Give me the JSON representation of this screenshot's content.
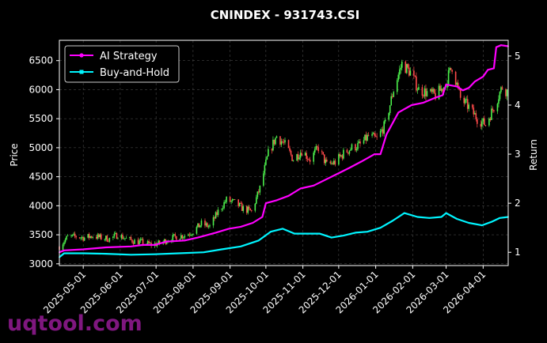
{
  "chart_data": {
    "type": "line",
    "title": "CNINDEX - 931743.CSI",
    "ylabel": "Price",
    "y2label": "Return",
    "ylim": [
      2970,
      6850
    ],
    "y2lim": [
      0.73,
      5.32
    ],
    "xlim": [
      "2025-04-11",
      "2026-04-22"
    ],
    "yticks": [
      "3000",
      "3500",
      "4000",
      "4500",
      "5000",
      "5500",
      "6000",
      "6500"
    ],
    "y2ticks": [
      "1",
      "2",
      "3",
      "4",
      "5"
    ],
    "xticks": [
      "2025-05-01",
      "2025-06-01",
      "2025-07-01",
      "2025-08-01",
      "2025-09-01",
      "2025-10-01",
      "2025-11-01",
      "2025-12-01",
      "2026-01-01",
      "2026-02-01",
      "2026-03-01",
      "2026-04-01"
    ],
    "grid": true,
    "legend_position": "top-left",
    "price_series": {
      "name": "Price (candlestick)",
      "colors": {
        "up": "#4cf04c",
        "down": "#ff4a4a"
      },
      "points": [
        [
          "2025-04-11",
          3300
        ],
        [
          "2025-04-18",
          3460
        ],
        [
          "2025-04-25",
          3470
        ],
        [
          "2025-05-02",
          3450
        ],
        [
          "2025-05-09",
          3480
        ],
        [
          "2025-05-16",
          3450
        ],
        [
          "2025-05-23",
          3430
        ],
        [
          "2025-05-30",
          3500
        ],
        [
          "2025-06-06",
          3430
        ],
        [
          "2025-06-13",
          3390
        ],
        [
          "2025-06-20",
          3370
        ],
        [
          "2025-06-27",
          3330
        ],
        [
          "2025-07-04",
          3350
        ],
        [
          "2025-07-11",
          3420
        ],
        [
          "2025-07-18",
          3470
        ],
        [
          "2025-07-25",
          3490
        ],
        [
          "2025-08-01",
          3560
        ],
        [
          "2025-08-08",
          3690
        ],
        [
          "2025-08-15",
          3640
        ],
        [
          "2025-08-22",
          3900
        ],
        [
          "2025-08-29",
          4100
        ],
        [
          "2025-09-05",
          4050
        ],
        [
          "2025-09-12",
          3950
        ],
        [
          "2025-09-19",
          3900
        ],
        [
          "2025-09-26",
          4300
        ],
        [
          "2025-10-03",
          4900
        ],
        [
          "2025-10-10",
          5200
        ],
        [
          "2025-10-17",
          5050
        ],
        [
          "2025-10-24",
          4800
        ],
        [
          "2025-10-31",
          4950
        ],
        [
          "2025-11-07",
          4800
        ],
        [
          "2025-11-14",
          5000
        ],
        [
          "2025-11-21",
          4700
        ],
        [
          "2025-11-28",
          4750
        ],
        [
          "2025-12-05",
          4900
        ],
        [
          "2025-12-12",
          5000
        ],
        [
          "2025-12-19",
          5050
        ],
        [
          "2025-12-26",
          5200
        ],
        [
          "2026-01-02",
          5150
        ],
        [
          "2026-01-09",
          5400
        ],
        [
          "2026-01-16",
          6000
        ],
        [
          "2026-01-23",
          6450
        ],
        [
          "2026-01-30",
          6300
        ],
        [
          "2026-02-06",
          6000
        ],
        [
          "2026-02-13",
          5950
        ],
        [
          "2026-02-20",
          5900
        ],
        [
          "2026-02-27",
          6050
        ],
        [
          "2026-03-06",
          6400
        ],
        [
          "2026-03-13",
          5850
        ],
        [
          "2026-03-20",
          5700
        ],
        [
          "2026-03-27",
          5500
        ],
        [
          "2026-04-03",
          5400
        ],
        [
          "2026-04-10",
          5700
        ],
        [
          "2026-04-17",
          6050
        ],
        [
          "2026-04-22",
          5950
        ]
      ]
    },
    "series": [
      {
        "name": "AI Strategy",
        "color": "#ff00ff",
        "points": [
          [
            "2025-04-11",
            1.0
          ],
          [
            "2025-04-15",
            1.04
          ],
          [
            "2025-05-01",
            1.06
          ],
          [
            "2025-05-20",
            1.1
          ],
          [
            "2025-06-10",
            1.12
          ],
          [
            "2025-06-20",
            1.15
          ],
          [
            "2025-06-30",
            1.15
          ],
          [
            "2025-07-10",
            1.22
          ],
          [
            "2025-07-25",
            1.24
          ],
          [
            "2025-08-05",
            1.3
          ],
          [
            "2025-08-20",
            1.4
          ],
          [
            "2025-08-31",
            1.48
          ],
          [
            "2025-09-10",
            1.52
          ],
          [
            "2025-09-20",
            1.6
          ],
          [
            "2025-09-28",
            1.72
          ],
          [
            "2025-10-01",
            2.0
          ],
          [
            "2025-10-10",
            2.06
          ],
          [
            "2025-10-20",
            2.15
          ],
          [
            "2025-10-30",
            2.3
          ],
          [
            "2025-11-10",
            2.36
          ],
          [
            "2025-11-20",
            2.48
          ],
          [
            "2025-11-30",
            2.6
          ],
          [
            "2025-12-10",
            2.72
          ],
          [
            "2025-12-20",
            2.85
          ],
          [
            "2025-12-31",
            3.0
          ],
          [
            "2026-01-05",
            3.0
          ],
          [
            "2026-01-10",
            3.4
          ],
          [
            "2026-01-20",
            3.85
          ],
          [
            "2026-01-31",
            4.0
          ],
          [
            "2026-02-10",
            4.05
          ],
          [
            "2026-02-20",
            4.15
          ],
          [
            "2026-02-26",
            4.2
          ],
          [
            "2026-03-01",
            4.42
          ],
          [
            "2026-03-10",
            4.38
          ],
          [
            "2026-03-15",
            4.3
          ],
          [
            "2026-03-20",
            4.35
          ],
          [
            "2026-03-25",
            4.48
          ],
          [
            "2026-04-01",
            4.58
          ],
          [
            "2026-04-05",
            4.72
          ],
          [
            "2026-04-10",
            4.75
          ],
          [
            "2026-04-12",
            5.18
          ],
          [
            "2026-04-16",
            5.22
          ],
          [
            "2026-04-22",
            5.2
          ]
        ]
      },
      {
        "name": "Buy-and-Hold",
        "color": "#00f5ff",
        "points": [
          [
            "2025-04-11",
            0.9
          ],
          [
            "2025-04-15",
            0.98
          ],
          [
            "2025-05-01",
            0.98
          ],
          [
            "2025-05-20",
            0.97
          ],
          [
            "2025-06-10",
            0.95
          ],
          [
            "2025-06-30",
            0.96
          ],
          [
            "2025-07-20",
            0.98
          ],
          [
            "2025-08-10",
            1.0
          ],
          [
            "2025-08-25",
            1.06
          ],
          [
            "2025-09-10",
            1.12
          ],
          [
            "2025-09-25",
            1.24
          ],
          [
            "2025-10-05",
            1.42
          ],
          [
            "2025-10-15",
            1.48
          ],
          [
            "2025-10-25",
            1.38
          ],
          [
            "2025-11-05",
            1.38
          ],
          [
            "2025-11-15",
            1.38
          ],
          [
            "2025-11-25",
            1.3
          ],
          [
            "2025-12-05",
            1.34
          ],
          [
            "2025-12-15",
            1.4
          ],
          [
            "2025-12-25",
            1.42
          ],
          [
            "2026-01-05",
            1.5
          ],
          [
            "2026-01-15",
            1.64
          ],
          [
            "2026-01-25",
            1.8
          ],
          [
            "2026-02-05",
            1.72
          ],
          [
            "2026-02-15",
            1.7
          ],
          [
            "2026-02-25",
            1.72
          ],
          [
            "2026-03-01",
            1.8
          ],
          [
            "2026-03-10",
            1.68
          ],
          [
            "2026-03-20",
            1.6
          ],
          [
            "2026-03-31",
            1.55
          ],
          [
            "2026-04-08",
            1.62
          ],
          [
            "2026-04-15",
            1.7
          ],
          [
            "2026-04-22",
            1.72
          ]
        ]
      }
    ]
  },
  "watermark": "uqtool.com"
}
